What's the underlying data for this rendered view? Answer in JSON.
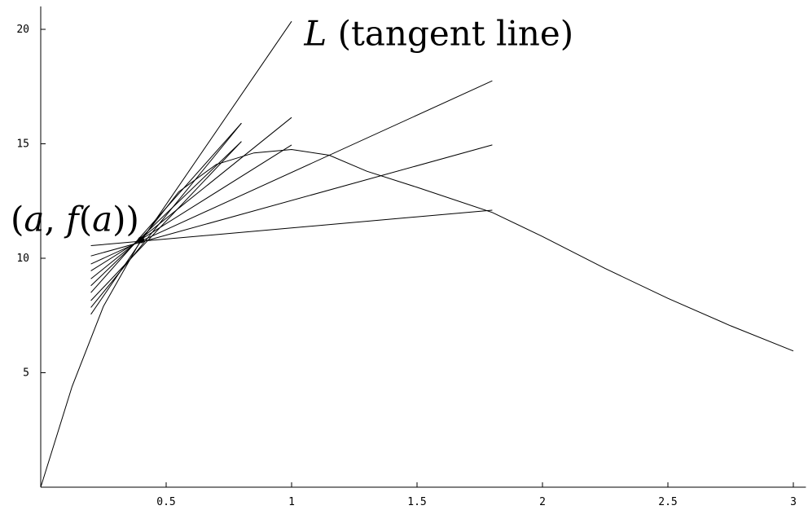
{
  "chart_data": {
    "type": "line",
    "title": "",
    "xlabel": "",
    "ylabel": "",
    "xlim": [
      0,
      3.05
    ],
    "ylim": [
      0,
      21
    ],
    "grid": false,
    "x_ticks": [
      {
        "value": 0.5,
        "label": "0.5"
      },
      {
        "value": 1,
        "label": "1"
      },
      {
        "value": 1.5,
        "label": "1.5"
      },
      {
        "value": 2,
        "label": "2"
      },
      {
        "value": 2.5,
        "label": "2.5"
      },
      {
        "value": 3,
        "label": "3"
      }
    ],
    "y_ticks": [
      {
        "value": 5,
        "label": "5"
      },
      {
        "value": 10,
        "label": "10"
      },
      {
        "value": 15,
        "label": "15"
      },
      {
        "value": 20,
        "label": "20"
      }
    ],
    "curve": {
      "x": [
        0,
        0.125,
        0.25,
        0.4,
        0.55,
        0.7,
        0.85,
        1.0,
        1.15,
        1.3,
        1.5,
        1.8,
        2.0,
        2.25,
        2.5,
        2.75,
        3.0
      ],
      "y": [
        0,
        4.4,
        7.9,
        10.8,
        12.9,
        14.1,
        14.6,
        14.75,
        14.5,
        13.8,
        13.1,
        12.0,
        10.95,
        9.55,
        8.25,
        7.05,
        5.95
      ]
    },
    "point": {
      "x": 0.4,
      "y": 10.8
    },
    "secants": [
      {
        "x": [
          0.2,
          1.8
        ],
        "y": [
          10.55,
          12.1
        ]
      },
      {
        "x": [
          0.2,
          1.8
        ],
        "y": [
          10.1,
          14.95
        ]
      },
      {
        "x": [
          0.2,
          1.8
        ],
        "y": [
          9.75,
          17.75
        ]
      },
      {
        "x": [
          0.2,
          1.0
        ],
        "y": [
          9.45,
          14.95
        ]
      },
      {
        "x": [
          0.2,
          1.0
        ],
        "y": [
          9.1,
          16.15
        ]
      },
      {
        "x": [
          0.2,
          0.8
        ],
        "y": [
          8.8,
          15.1
        ]
      },
      {
        "x": [
          0.2,
          0.8
        ],
        "y": [
          8.5,
          15.9
        ]
      },
      {
        "x": [
          0.2,
          0.8
        ],
        "y": [
          8.15,
          15.1
        ]
      },
      {
        "x": [
          0.2,
          0.8
        ],
        "y": [
          7.85,
          15.9
        ]
      }
    ],
    "tangent": {
      "x": [
        0.2,
        1.0
      ],
      "y": [
        7.55,
        20.35
      ]
    },
    "annotations": {
      "tangent": {
        "var": "L",
        "text": " (tangent line)",
        "x": 1.05,
        "y": 19.3
      },
      "point": {
        "open": "(",
        "a1": "a",
        "comma": ", ",
        "f": "f",
        "open2": "(",
        "a2": "a",
        "close": "))",
        "x": -0.12,
        "y": 11.2
      }
    }
  }
}
